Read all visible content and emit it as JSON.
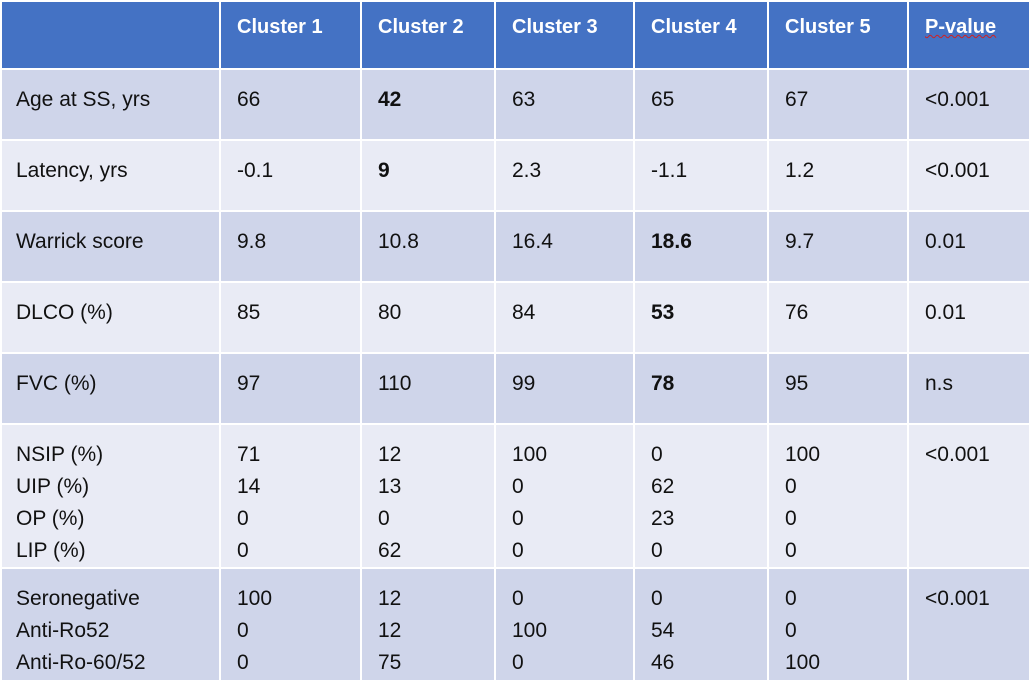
{
  "table": {
    "header": [
      "Cluster 1",
      "Cluster 2",
      "Cluster 3",
      "Cluster 4",
      "Cluster 5",
      "P-value"
    ],
    "rows": [
      [
        "Age at SS, yrs",
        "66",
        {
          "text": "42",
          "bold": true
        },
        "63",
        "65",
        "67",
        "<0.001"
      ],
      [
        "Latency, yrs",
        "-0.1",
        {
          "text": "9",
          "bold": true
        },
        "2.3",
        "-1.1",
        "1.2",
        "<0.001"
      ],
      [
        "Warrick score",
        "9.8",
        "10.8",
        "16.4",
        {
          "text": "18.6",
          "bold": true
        },
        "9.7",
        "0.01"
      ],
      [
        "DLCO (%)",
        "85",
        "80",
        "84",
        {
          "text": "53",
          "bold": true
        },
        "76",
        "0.01"
      ],
      [
        "FVC (%)",
        "97",
        "110",
        "99",
        {
          "text": "78",
          "bold": true
        },
        "95",
        "n.s"
      ],
      [
        [
          "NSIP (%)",
          "UIP (%)",
          "OP (%)",
          "LIP (%)"
        ],
        [
          "71",
          "14",
          "0",
          "0"
        ],
        [
          "12",
          "13",
          "0",
          "62"
        ],
        [
          "100",
          "0",
          "0",
          "0"
        ],
        [
          "0",
          "62",
          "23",
          "0"
        ],
        [
          "100",
          "0",
          "0",
          "0"
        ],
        [
          "<0.001"
        ]
      ],
      [
        [
          "Seronegative",
          "Anti-Ro52",
          "Anti-Ro-60/52"
        ],
        [
          "100",
          "0",
          "0"
        ],
        [
          "12",
          "12",
          "75"
        ],
        [
          "0",
          "100",
          "0"
        ],
        [
          "0",
          "54",
          "46"
        ],
        [
          "0",
          "0",
          "100"
        ],
        [
          "<0.001"
        ]
      ]
    ]
  }
}
